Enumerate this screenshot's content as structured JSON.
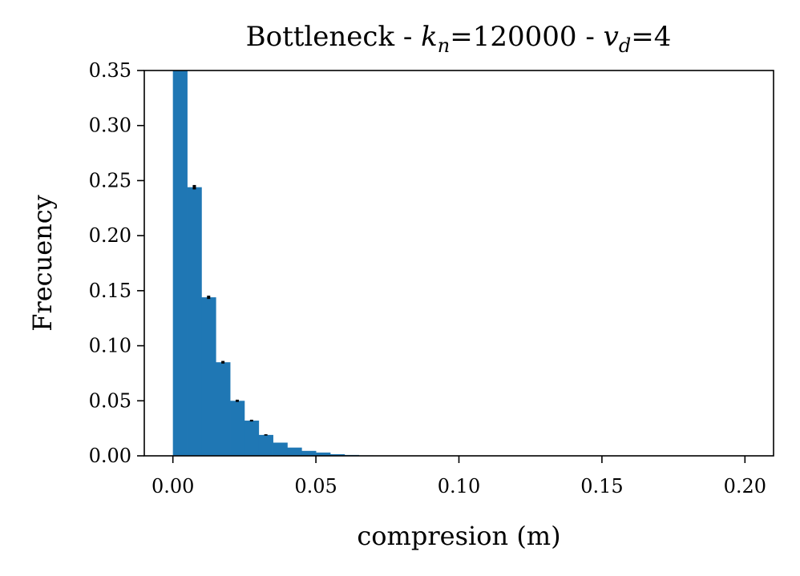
{
  "chart_data": {
    "type": "bar",
    "title": {
      "prefix": "Bottleneck - ",
      "k_var": "k",
      "k_sub": "n",
      "k_eq": "=120000 - ",
      "v_var": "v",
      "v_sub": "d",
      "v_eq": "=4"
    },
    "xlabel": "compresion (m)",
    "ylabel": "Frecuency",
    "xlim": [
      -0.01,
      0.21
    ],
    "ylim": [
      0,
      0.35
    ],
    "xticks": [
      0.0,
      0.05,
      0.1,
      0.15,
      0.2
    ],
    "xtick_labels": [
      "0.00",
      "0.05",
      "0.10",
      "0.15",
      "0.20"
    ],
    "yticks": [
      0.0,
      0.05,
      0.1,
      0.15,
      0.2,
      0.25,
      0.3,
      0.35
    ],
    "ytick_labels": [
      "0.00",
      "0.05",
      "0.10",
      "0.15",
      "0.20",
      "0.25",
      "0.30",
      "0.35"
    ],
    "grid": false,
    "bin_width": 0.005,
    "bins_start": 0.0,
    "values": [
      0.36,
      0.244,
      0.144,
      0.085,
      0.05,
      0.032,
      0.019,
      0.012,
      0.0075,
      0.0045,
      0.003,
      0.0015,
      0.0008,
      0.0004,
      0.0002,
      0.0001
    ],
    "error_bars": [
      {
        "x": 0.0075,
        "y": 0.244,
        "err": 0.002
      },
      {
        "x": 0.0125,
        "y": 0.144,
        "err": 0.0015
      },
      {
        "x": 0.0175,
        "y": 0.085,
        "err": 0.0012
      },
      {
        "x": 0.0225,
        "y": 0.05,
        "err": 0.001
      },
      {
        "x": 0.0275,
        "y": 0.032,
        "err": 0.0008
      },
      {
        "x": 0.0325,
        "y": 0.019,
        "err": 0.0006
      }
    ],
    "bar_color": "#1f77b4",
    "error_color": "#000000"
  }
}
